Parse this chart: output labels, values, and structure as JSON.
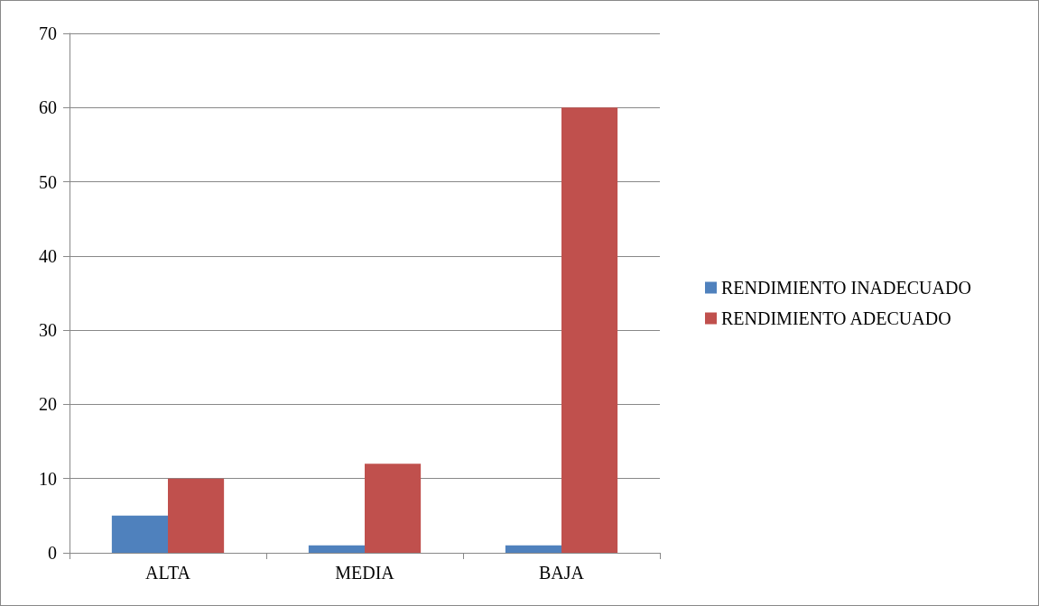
{
  "chart_data": {
    "type": "bar",
    "categories": [
      "ALTA",
      "MEDIA",
      "BAJA"
    ],
    "series": [
      {
        "name": "RENDIMIENTO INADECUADO",
        "color": "#4f81bd",
        "values": [
          5,
          1,
          1
        ]
      },
      {
        "name": "RENDIMIENTO ADECUADO",
        "color": "#c0504d",
        "values": [
          10,
          12,
          60
        ]
      }
    ],
    "ylim": [
      0,
      70
    ],
    "yticks": [
      0,
      10,
      20,
      30,
      40,
      50,
      60,
      70
    ],
    "grid": "y",
    "legend": "right"
  }
}
